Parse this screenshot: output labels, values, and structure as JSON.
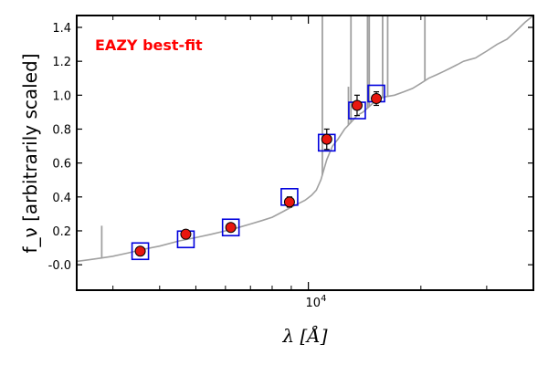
{
  "chart_data": {
    "type": "scatter",
    "annotation": "EAZY best-fit",
    "annotation_color": "#ff0000",
    "xlabel": "λ [Å]",
    "ylabel": "f_ν [arbitrarily scaled]",
    "x_scale": "log",
    "x_tick_label": "10^4",
    "xlim": [
      2400,
      40000
    ],
    "ylim": [
      -0.15,
      1.47
    ],
    "yticks": [
      "-0.0",
      "0.2",
      "0.4",
      "0.6",
      "0.8",
      "1.0",
      "1.2",
      "1.4"
    ],
    "ytick_values": [
      0.0,
      0.2,
      0.4,
      0.6,
      0.8,
      1.0,
      1.2,
      1.4
    ],
    "x_major_tick": 10000,
    "x_minor_ticks": [
      3000,
      4000,
      5000,
      6000,
      7000,
      8000,
      9000,
      20000,
      30000,
      40000
    ],
    "series": [
      {
        "marker": "observed-flux",
        "color": "#e8170f",
        "edge": "#000000",
        "x": [
          3550,
          4700,
          6200,
          8900,
          11200,
          13500,
          15200
        ],
        "y": [
          0.08,
          0.18,
          0.22,
          0.37,
          0.74,
          0.94,
          0.98
        ],
        "yerr": [
          0.02,
          0.02,
          0.02,
          0.03,
          0.06,
          0.06,
          0.04
        ]
      },
      {
        "marker": "model-flux",
        "color": "#0000dd",
        "x": [
          3550,
          4700,
          6200,
          8900,
          11200,
          13500,
          15200
        ],
        "y": [
          0.08,
          0.15,
          0.22,
          0.4,
          0.72,
          0.91,
          1.01
        ]
      },
      {
        "marker": "best-fit-sed",
        "color": "#a0a0a0",
        "x": [
          2400,
          2600,
          2800,
          3000,
          3300,
          3600,
          4000,
          4500,
          5000,
          5500,
          6000,
          6500,
          7000,
          7500,
          8000,
          8500,
          9000,
          9400,
          9800,
          10200,
          10500,
          10800,
          11200,
          11600,
          12000,
          12500,
          13000,
          13500,
          14000,
          14500,
          15000,
          15500,
          16000,
          17000,
          18000,
          19000,
          20000,
          21000,
          22000,
          23000,
          24000,
          25000,
          26000,
          27000,
          28000,
          29000,
          30000,
          32000,
          34000,
          36000,
          38000,
          40000
        ],
        "y": [
          0.02,
          0.03,
          0.04,
          0.05,
          0.07,
          0.09,
          0.11,
          0.14,
          0.16,
          0.18,
          0.2,
          0.22,
          0.24,
          0.26,
          0.28,
          0.31,
          0.34,
          0.36,
          0.38,
          0.41,
          0.44,
          0.5,
          0.62,
          0.7,
          0.74,
          0.8,
          0.84,
          0.88,
          0.9,
          0.93,
          0.96,
          0.98,
          0.99,
          1.0,
          1.02,
          1.04,
          1.07,
          1.1,
          1.12,
          1.14,
          1.16,
          1.18,
          1.2,
          1.21,
          1.22,
          1.24,
          1.26,
          1.3,
          1.33,
          1.38,
          1.43,
          1.47
        ]
      }
    ],
    "emission_lines": [
      {
        "x": 2800,
        "y": 0.23
      },
      {
        "x": 10900,
        "y": 1.47
      },
      {
        "x": 12800,
        "y": 1.05
      },
      {
        "x": 13000,
        "y": 1.47
      },
      {
        "x": 14400,
        "y": 1.47
      },
      {
        "x": 14550,
        "y": 1.47
      },
      {
        "x": 15800,
        "y": 1.47
      },
      {
        "x": 16300,
        "y": 1.47
      },
      {
        "x": 20500,
        "y": 1.47
      }
    ]
  }
}
